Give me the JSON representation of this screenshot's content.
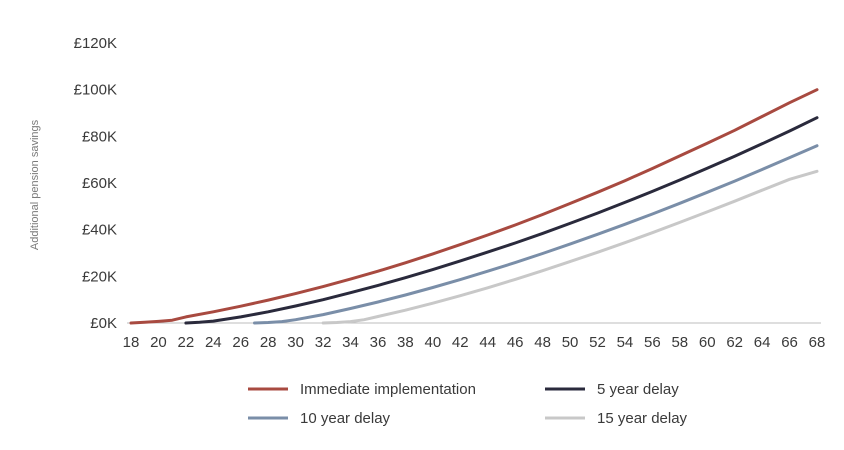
{
  "chart_data": {
    "type": "line",
    "title": "",
    "xlabel": "",
    "ylabel": "Additional pension savings",
    "xlim": [
      18,
      68
    ],
    "ylim": [
      0,
      120000
    ],
    "x_ticks": [
      "18",
      "20",
      "22",
      "24",
      "26",
      "28",
      "30",
      "32",
      "34",
      "36",
      "38",
      "40",
      "42",
      "44",
      "46",
      "48",
      "50",
      "52",
      "54",
      "56",
      "58",
      "60",
      "62",
      "64",
      "66",
      "68"
    ],
    "y_ticks": [
      {
        "value": 0,
        "label": "£0K"
      },
      {
        "value": 20000,
        "label": "£20K"
      },
      {
        "value": 40000,
        "label": "£40K"
      },
      {
        "value": 60000,
        "label": "£60K"
      },
      {
        "value": 80000,
        "label": "£80K"
      },
      {
        "value": 100000,
        "label": "£100K"
      },
      {
        "value": 120000,
        "label": "£120K"
      }
    ],
    "grid": false,
    "legend_position": "bottom",
    "series": [
      {
        "name": "Immediate implementation",
        "color": "#a84a40",
        "points": [
          [
            18,
            0
          ],
          [
            19,
            300
          ],
          [
            20,
            700
          ],
          [
            21,
            1200
          ],
          [
            22,
            2600
          ],
          [
            24,
            4800
          ],
          [
            26,
            7200
          ],
          [
            28,
            9800
          ],
          [
            30,
            12600
          ],
          [
            32,
            15600
          ],
          [
            34,
            18800
          ],
          [
            36,
            22200
          ],
          [
            38,
            25800
          ],
          [
            40,
            29600
          ],
          [
            42,
            33600
          ],
          [
            44,
            37700
          ],
          [
            46,
            42000
          ],
          [
            48,
            46500
          ],
          [
            50,
            51200
          ],
          [
            52,
            56000
          ],
          [
            54,
            61000
          ],
          [
            56,
            66200
          ],
          [
            58,
            71600
          ],
          [
            60,
            77000
          ],
          [
            62,
            82600
          ],
          [
            64,
            88500
          ],
          [
            66,
            94400
          ],
          [
            68,
            100000
          ]
        ]
      },
      {
        "name": "5 year delay",
        "color": "#2a2a3c",
        "points": [
          [
            22,
            0
          ],
          [
            23,
            300
          ],
          [
            24,
            800
          ],
          [
            26,
            2600
          ],
          [
            28,
            4800
          ],
          [
            30,
            7300
          ],
          [
            32,
            10000
          ],
          [
            34,
            13000
          ],
          [
            36,
            16100
          ],
          [
            38,
            19400
          ],
          [
            40,
            22900
          ],
          [
            42,
            26600
          ],
          [
            44,
            30400
          ],
          [
            46,
            34300
          ],
          [
            48,
            38400
          ],
          [
            50,
            42700
          ],
          [
            52,
            47100
          ],
          [
            54,
            51700
          ],
          [
            56,
            56400
          ],
          [
            58,
            61300
          ],
          [
            60,
            66300
          ],
          [
            62,
            71500
          ],
          [
            64,
            76800
          ],
          [
            66,
            82300
          ],
          [
            68,
            88000
          ]
        ]
      },
      {
        "name": "10 year delay",
        "color": "#7a8ea8",
        "points": [
          [
            27,
            0
          ],
          [
            28,
            200
          ],
          [
            29,
            600
          ],
          [
            30,
            1400
          ],
          [
            32,
            3600
          ],
          [
            34,
            6200
          ],
          [
            36,
            9000
          ],
          [
            38,
            12000
          ],
          [
            40,
            15200
          ],
          [
            42,
            18600
          ],
          [
            44,
            22200
          ],
          [
            46,
            25900
          ],
          [
            48,
            29800
          ],
          [
            50,
            33800
          ],
          [
            52,
            38000
          ],
          [
            54,
            42300
          ],
          [
            56,
            46700
          ],
          [
            58,
            51300
          ],
          [
            60,
            56000
          ],
          [
            62,
            60800
          ],
          [
            64,
            65800
          ],
          [
            66,
            70900
          ],
          [
            68,
            76000
          ]
        ]
      },
      {
        "name": "15 year delay",
        "color": "#c8c8c8",
        "points": [
          [
            32,
            0
          ],
          [
            33,
            200
          ],
          [
            34,
            600
          ],
          [
            35,
            1400
          ],
          [
            36,
            2800
          ],
          [
            38,
            5500
          ],
          [
            40,
            8500
          ],
          [
            42,
            11700
          ],
          [
            44,
            15100
          ],
          [
            46,
            18700
          ],
          [
            48,
            22400
          ],
          [
            50,
            26300
          ],
          [
            52,
            30300
          ],
          [
            54,
            34400
          ],
          [
            56,
            38700
          ],
          [
            58,
            43100
          ],
          [
            60,
            47600
          ],
          [
            62,
            52200
          ],
          [
            64,
            56900
          ],
          [
            66,
            61600
          ],
          [
            68,
            65000
          ]
        ]
      }
    ]
  }
}
